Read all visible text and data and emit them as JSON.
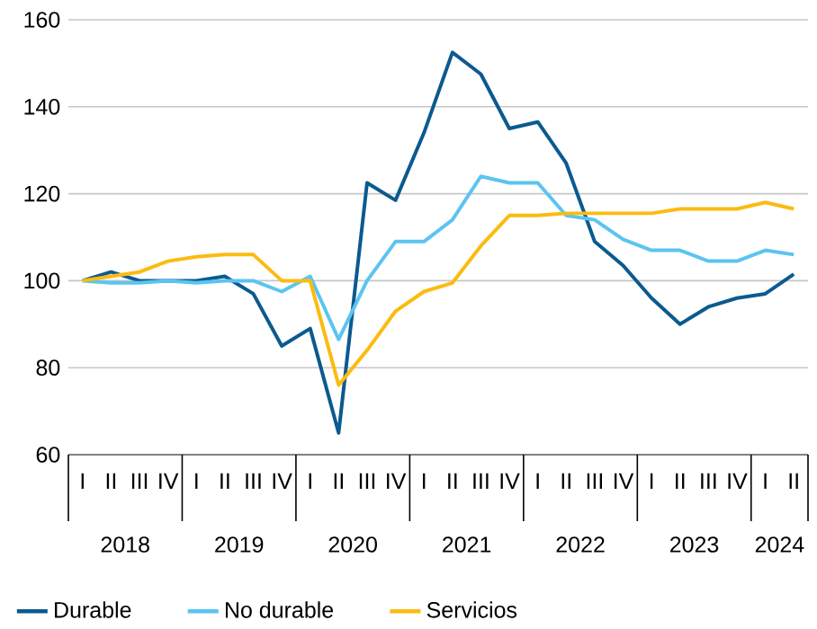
{
  "chart_data": {
    "type": "line",
    "categories": [
      "I",
      "II",
      "III",
      "IV",
      "I",
      "II",
      "III",
      "IV",
      "I",
      "II",
      "III",
      "IV",
      "I",
      "II",
      "III",
      "IV",
      "I",
      "II",
      "III",
      "IV",
      "I",
      "II",
      "III",
      "IV",
      "I",
      "II"
    ],
    "series": [
      {
        "name": "Durable",
        "color": "#0b5a8f",
        "values": [
          100,
          102,
          100,
          100,
          100,
          101,
          97,
          85,
          89,
          65,
          122.5,
          118.5,
          134,
          152.5,
          147.5,
          135,
          136.5,
          127,
          109,
          103.5,
          96,
          90,
          94,
          96,
          97,
          101.5
        ]
      },
      {
        "name": "No durable",
        "color": "#5bc4f1",
        "values": [
          100,
          99.5,
          99.5,
          100,
          99.5,
          100,
          100,
          97.5,
          101,
          86.5,
          100,
          109,
          109,
          114,
          124,
          122.5,
          122.5,
          115,
          114,
          109.5,
          107,
          107,
          104.5,
          104.5,
          107,
          106
        ]
      },
      {
        "name": "Servicios",
        "color": "#fbbb10",
        "values": [
          100,
          101,
          102,
          104.5,
          105.5,
          106,
          106,
          100,
          100,
          76,
          84,
          93,
          97.5,
          99.5,
          108,
          115,
          115,
          115.5,
          115.5,
          115.5,
          115.5,
          116.5,
          116.5,
          116.5,
          118,
          116.5
        ]
      }
    ],
    "annotations": [
      "2018",
      "2019",
      "2020",
      "2021",
      "2022",
      "2023",
      "2024"
    ],
    "ylim": [
      60,
      160
    ],
    "yticks": [
      60,
      80,
      100,
      120,
      140,
      160
    ],
    "grid": "y",
    "legend": "bottom"
  }
}
